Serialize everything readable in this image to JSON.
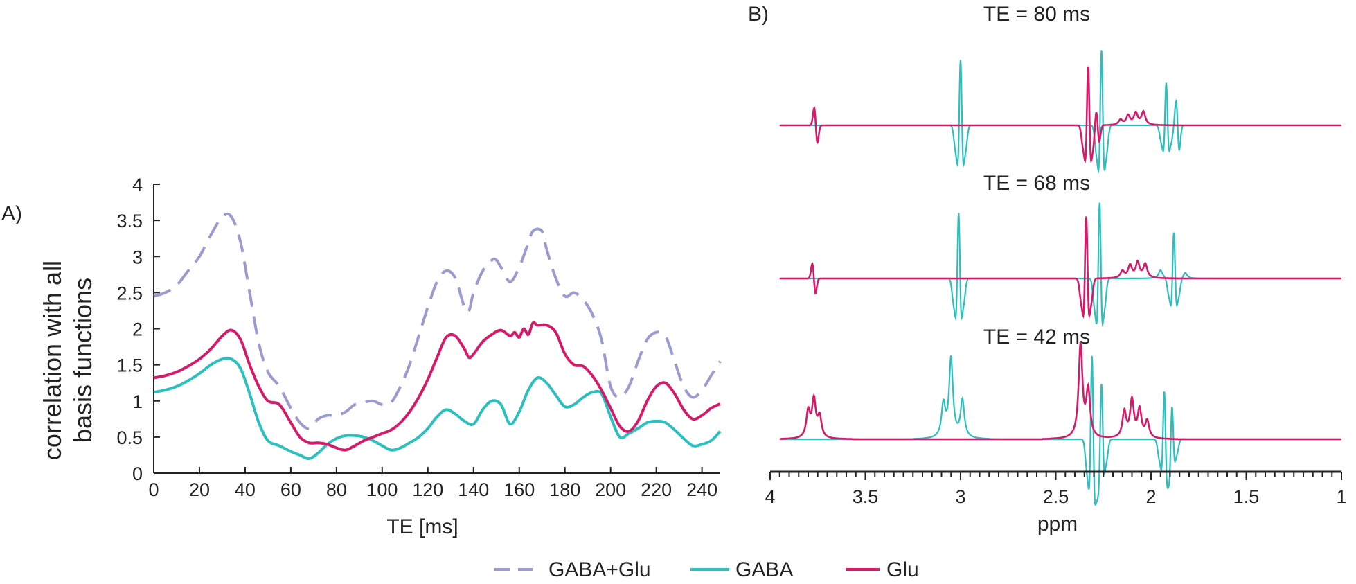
{
  "colors": {
    "combined": "#9b9bd2",
    "gaba": "#2bbfbf",
    "glu": "#d61a6a",
    "axis": "#222222"
  },
  "chart_data": [
    {
      "panel_label": "A)",
      "type": "line",
      "xlabel": "TE [ms]",
      "ylabel_lines": [
        "correlation with all",
        "basis functions"
      ],
      "xlim": [
        0,
        248
      ],
      "ylim": [
        0,
        4
      ],
      "xticks": [
        0,
        20,
        40,
        60,
        80,
        100,
        120,
        140,
        160,
        180,
        200,
        220,
        240
      ],
      "yticks": [
        0,
        0.5,
        1,
        1.5,
        2,
        2.5,
        3,
        3.5,
        4
      ],
      "ytick_labels": [
        "0",
        "0.5",
        "1",
        "1.5",
        "2",
        "2.5",
        "3",
        "3.5",
        "4"
      ],
      "series": [
        {
          "name": "GABA+Glu",
          "style": "dashed",
          "color_key": "combined",
          "x": [
            0,
            5,
            10,
            15,
            20,
            25,
            30,
            34,
            38,
            42,
            46,
            50,
            55,
            60,
            64,
            68,
            72,
            76,
            80,
            84,
            88,
            92,
            96,
            100,
            104,
            108,
            112,
            116,
            120,
            124,
            128,
            132,
            136,
            138,
            140,
            144,
            148,
            150,
            152,
            156,
            160,
            163,
            166,
            170,
            172,
            176,
            180,
            184,
            188,
            192,
            196,
            200,
            204,
            208,
            212,
            216,
            220,
            224,
            228,
            232,
            236,
            240,
            244,
            248
          ],
          "y": [
            2.45,
            2.5,
            2.6,
            2.8,
            3.0,
            3.3,
            3.55,
            3.55,
            3.2,
            2.5,
            1.8,
            1.4,
            1.2,
            0.9,
            0.7,
            0.62,
            0.75,
            0.8,
            0.8,
            0.85,
            0.95,
            0.98,
            1.0,
            0.95,
            0.98,
            1.2,
            1.5,
            1.9,
            2.3,
            2.65,
            2.8,
            2.7,
            2.3,
            2.25,
            2.5,
            2.8,
            2.95,
            2.95,
            2.85,
            2.65,
            2.85,
            3.1,
            3.35,
            3.35,
            3.1,
            2.7,
            2.45,
            2.5,
            2.4,
            2.2,
            1.85,
            1.2,
            1.05,
            1.2,
            1.55,
            1.85,
            1.95,
            1.9,
            1.55,
            1.2,
            1.05,
            1.15,
            1.35,
            1.55
          ]
        },
        {
          "name": "GABA",
          "style": "solid",
          "color_key": "gaba",
          "x": [
            0,
            5,
            10,
            15,
            20,
            25,
            30,
            34,
            38,
            42,
            46,
            50,
            55,
            60,
            64,
            68,
            72,
            76,
            80,
            84,
            88,
            92,
            96,
            100,
            104,
            108,
            112,
            116,
            120,
            124,
            128,
            132,
            136,
            140,
            144,
            148,
            152,
            156,
            160,
            164,
            168,
            172,
            176,
            180,
            184,
            188,
            192,
            196,
            200,
            204,
            208,
            212,
            216,
            220,
            224,
            228,
            232,
            236,
            240,
            244,
            248
          ],
          "y": [
            1.12,
            1.15,
            1.2,
            1.28,
            1.38,
            1.5,
            1.58,
            1.58,
            1.45,
            1.1,
            0.7,
            0.45,
            0.38,
            0.3,
            0.25,
            0.2,
            0.28,
            0.4,
            0.48,
            0.52,
            0.52,
            0.5,
            0.45,
            0.38,
            0.32,
            0.35,
            0.42,
            0.5,
            0.62,
            0.78,
            0.88,
            0.82,
            0.72,
            0.68,
            0.88,
            1.0,
            0.95,
            0.68,
            0.85,
            1.15,
            1.32,
            1.25,
            1.08,
            0.92,
            0.95,
            1.05,
            1.12,
            1.1,
            0.78,
            0.5,
            0.55,
            0.62,
            0.7,
            0.72,
            0.7,
            0.6,
            0.48,
            0.38,
            0.4,
            0.45,
            0.58
          ]
        },
        {
          "name": "Glu",
          "style": "solid",
          "color_key": "glu",
          "x": [
            0,
            5,
            10,
            15,
            20,
            25,
            30,
            34,
            38,
            42,
            46,
            50,
            55,
            60,
            64,
            68,
            72,
            76,
            80,
            84,
            88,
            92,
            96,
            100,
            104,
            108,
            112,
            116,
            120,
            124,
            128,
            132,
            136,
            138,
            140,
            144,
            148,
            152,
            156,
            158,
            160,
            162,
            164,
            166,
            168,
            172,
            176,
            180,
            184,
            188,
            192,
            196,
            200,
            204,
            208,
            212,
            216,
            220,
            224,
            228,
            232,
            236,
            240,
            244,
            248
          ],
          "y": [
            1.32,
            1.35,
            1.4,
            1.48,
            1.58,
            1.72,
            1.9,
            1.98,
            1.85,
            1.5,
            1.2,
            1.0,
            0.95,
            0.7,
            0.5,
            0.42,
            0.42,
            0.4,
            0.35,
            0.32,
            0.38,
            0.45,
            0.5,
            0.55,
            0.6,
            0.7,
            0.85,
            1.05,
            1.3,
            1.6,
            1.88,
            1.9,
            1.72,
            1.6,
            1.65,
            1.82,
            1.92,
            1.98,
            1.9,
            1.95,
            1.88,
            2.0,
            1.92,
            2.08,
            2.05,
            2.05,
            1.95,
            1.65,
            1.5,
            1.48,
            1.35,
            1.15,
            0.9,
            0.65,
            0.58,
            0.72,
            1.0,
            1.2,
            1.25,
            1.1,
            0.88,
            0.75,
            0.8,
            0.9,
            0.96
          ]
        }
      ]
    },
    {
      "panel_label": "B)",
      "type": "line",
      "xlabel": "ppm",
      "xlim": [
        4,
        1
      ],
      "x_reversed": true,
      "xticks": [
        4,
        3.5,
        3,
        2.5,
        2,
        1.5,
        1
      ],
      "xtick_labels": [
        "4",
        "3.5",
        "3",
        "2.5",
        "2",
        "1.5",
        "1"
      ],
      "y_units": "arbitrary intensity (baseline 0, peak ~1)",
      "spectra": [
        {
          "title": "TE = 80 ms",
          "x_start": 3.95,
          "x_end": 1.0,
          "gaba_peaks": [
            {
              "ppm": 3.0,
              "amp": 1.0,
              "shape": "dispersive"
            },
            {
              "ppm": 2.26,
              "amp": 1.15,
              "shape": "dispersive"
            },
            {
              "ppm": 1.92,
              "amp": 0.65,
              "shape": "dispersive"
            },
            {
              "ppm": 1.86,
              "amp": 0.45,
              "shape": "antiphase"
            }
          ],
          "glu_peaks": [
            {
              "ppm": 3.76,
              "amp": 0.32,
              "shape": "antiphase"
            },
            {
              "ppm": 2.33,
              "amp": 0.9,
              "shape": "dispersive"
            },
            {
              "ppm": 2.28,
              "amp": 0.3,
              "shape": "antiphase"
            },
            {
              "ppm": 2.16,
              "amp": 0.08,
              "shape": "absorptive"
            },
            {
              "ppm": 2.12,
              "amp": 0.14,
              "shape": "absorptive"
            },
            {
              "ppm": 2.08,
              "amp": 0.18,
              "shape": "absorptive"
            },
            {
              "ppm": 2.04,
              "amp": 0.2,
              "shape": "absorptive"
            }
          ]
        },
        {
          "title": "TE = 68 ms",
          "x_start": 3.95,
          "x_end": 1.0,
          "gaba_peaks": [
            {
              "ppm": 3.01,
              "amp": 0.95,
              "shape": "dispersive"
            },
            {
              "ppm": 2.27,
              "amp": 1.1,
              "shape": "dispersive"
            },
            {
              "ppm": 1.95,
              "amp": 0.12,
              "shape": "absorptive"
            },
            {
              "ppm": 1.88,
              "amp": 0.66,
              "shape": "dispersive"
            },
            {
              "ppm": 1.82,
              "amp": 0.08,
              "shape": "absorptive"
            }
          ],
          "glu_peaks": [
            {
              "ppm": 3.77,
              "amp": 0.26,
              "shape": "antiphase"
            },
            {
              "ppm": 2.34,
              "amp": 0.9,
              "shape": "dispersive"
            },
            {
              "ppm": 2.15,
              "amp": 0.1,
              "shape": "absorptive"
            },
            {
              "ppm": 2.11,
              "amp": 0.18,
              "shape": "absorptive"
            },
            {
              "ppm": 2.07,
              "amp": 0.22,
              "shape": "absorptive"
            },
            {
              "ppm": 2.03,
              "amp": 0.2,
              "shape": "absorptive"
            }
          ]
        },
        {
          "title": "TE = 42 ms",
          "x_start": 3.95,
          "x_end": 1.0,
          "gaba_peaks": [
            {
              "ppm": 3.05,
              "amp": 0.85,
              "shape": "absorptive"
            },
            {
              "ppm": 3.09,
              "amp": 0.35,
              "shape": "absorptive"
            },
            {
              "ppm": 2.99,
              "amp": 0.4,
              "shape": "absorptive"
            },
            {
              "ppm": 2.31,
              "amp": 0.9,
              "shape": "dispersive"
            },
            {
              "ppm": 2.26,
              "amp": 0.6,
              "shape": "dispersive"
            },
            {
              "ppm": 1.93,
              "amp": 0.55,
              "shape": "dispersive"
            },
            {
              "ppm": 1.89,
              "amp": 0.4,
              "shape": "dispersive"
            }
          ],
          "glu_peaks": [
            {
              "ppm": 3.8,
              "amp": 0.28,
              "shape": "absorptive"
            },
            {
              "ppm": 3.77,
              "amp": 0.4,
              "shape": "absorptive"
            },
            {
              "ppm": 3.74,
              "amp": 0.22,
              "shape": "absorptive"
            },
            {
              "ppm": 2.37,
              "amp": 1.0,
              "shape": "absorptive"
            },
            {
              "ppm": 2.33,
              "amp": 0.5,
              "shape": "absorptive"
            },
            {
              "ppm": 2.14,
              "amp": 0.28,
              "shape": "absorptive"
            },
            {
              "ppm": 2.1,
              "amp": 0.4,
              "shape": "absorptive"
            },
            {
              "ppm": 2.06,
              "amp": 0.3,
              "shape": "absorptive"
            },
            {
              "ppm": 2.02,
              "amp": 0.18,
              "shape": "absorptive"
            }
          ]
        }
      ]
    }
  ],
  "legend": {
    "items": [
      {
        "label": "GABA+Glu",
        "style": "dashed",
        "color_key": "combined"
      },
      {
        "label": "GABA",
        "style": "solid",
        "color_key": "gaba"
      },
      {
        "label": "Glu",
        "style": "solid",
        "color_key": "glu"
      }
    ]
  }
}
